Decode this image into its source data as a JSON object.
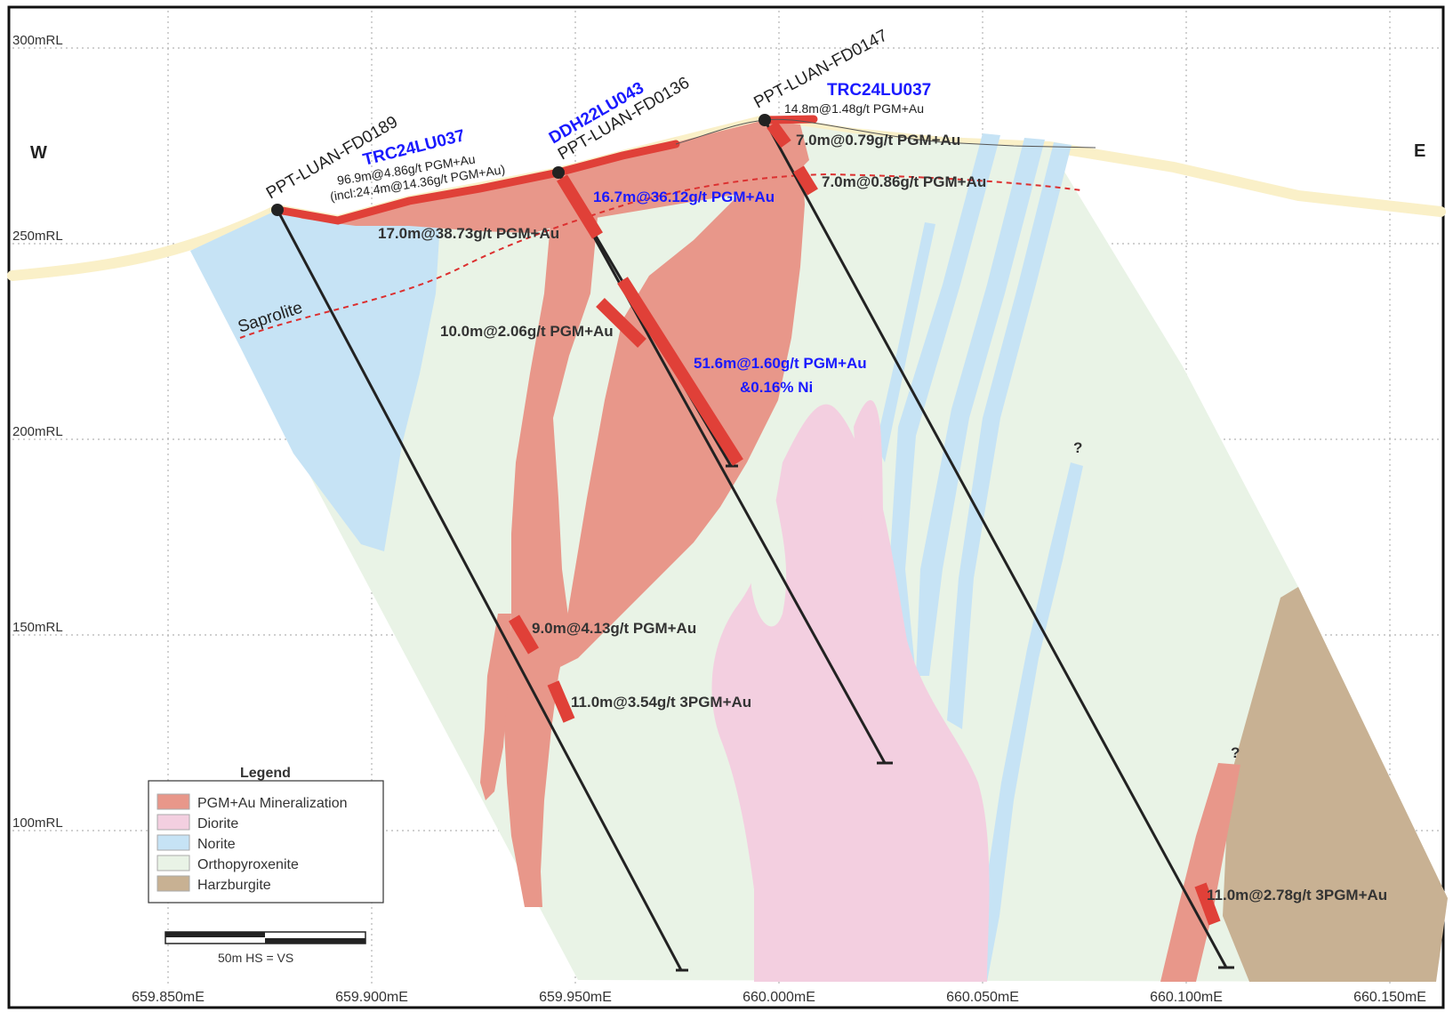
{
  "compass": {
    "west": "W",
    "east": "E"
  },
  "elevations": [
    "300mRL",
    "250mRL",
    "200mRL",
    "150mRL",
    "100mRL"
  ],
  "eastings": [
    "659.850mE",
    "659.900mE",
    "659.950mE",
    "660.000mE",
    "660.050mE",
    "660.100mE",
    "660.150mE"
  ],
  "drillholes": {
    "fd0189": "PPT-LUAN-FD0189",
    "fd0136": "PPT-LUAN-FD0136",
    "fd0147": "PPT-LUAN-FD0147",
    "ddh043": "DDH22LU043",
    "trc037_left": "TRC24LU037",
    "trc037_right": "TRC24LU037"
  },
  "intercepts": {
    "trc_left_main": "96.9m@4.86g/t PGM+Au",
    "trc_left_incl": "(incl:24.4m@14.36g/t PGM+Au)",
    "fd0189_top": "17.0m@38.73g/t PGM+Au",
    "fd0189_mid": "9.0m@4.13g/t PGM+Au",
    "ddh043_top": "16.7m@36.12g/t PGM+Au",
    "ddh043_main_1": "51.6m@1.60g/t PGM+Au",
    "ddh043_main_2": "&0.16% Ni",
    "fd0136_a": "10.0m@2.06g/t PGM+Au",
    "fd0136_b": "11.0m@3.54g/t 3PGM+Au",
    "trc_right": "14.8m@1.48g/t PGM+Au",
    "fd0147_a": "7.0m@0.79g/t PGM+Au",
    "fd0147_b": "7.0m@0.86g/t PGM+Au",
    "fd0147_c": "11.0m@2.78g/t 3PGM+Au"
  },
  "saprolite_label": "Saprolite",
  "question_marks": [
    "?",
    "?"
  ],
  "legend": {
    "title": "Legend",
    "items": [
      {
        "label": "PGM+Au Mineralization",
        "color": "#e8978a"
      },
      {
        "label": "Diorite",
        "color": "#f3cfe0"
      },
      {
        "label": "Norite",
        "color": "#c6e3f5"
      },
      {
        "label": "Orthopyroxenite",
        "color": "#e9f3e6"
      },
      {
        "label": "Harzburgite",
        "color": "#c8b193"
      }
    ]
  },
  "scale_bar": {
    "label": "50m  HS = VS"
  },
  "colors": {
    "mineralization": "#e8978a",
    "intercept": "#e04038",
    "diorite": "#f3cfe0",
    "norite": "#c6e3f5",
    "orthopyroxenite": "#e9f3e6",
    "harzburgite": "#c8b193",
    "topography": "#faf0c8",
    "blue_text": "#1a1aff"
  }
}
